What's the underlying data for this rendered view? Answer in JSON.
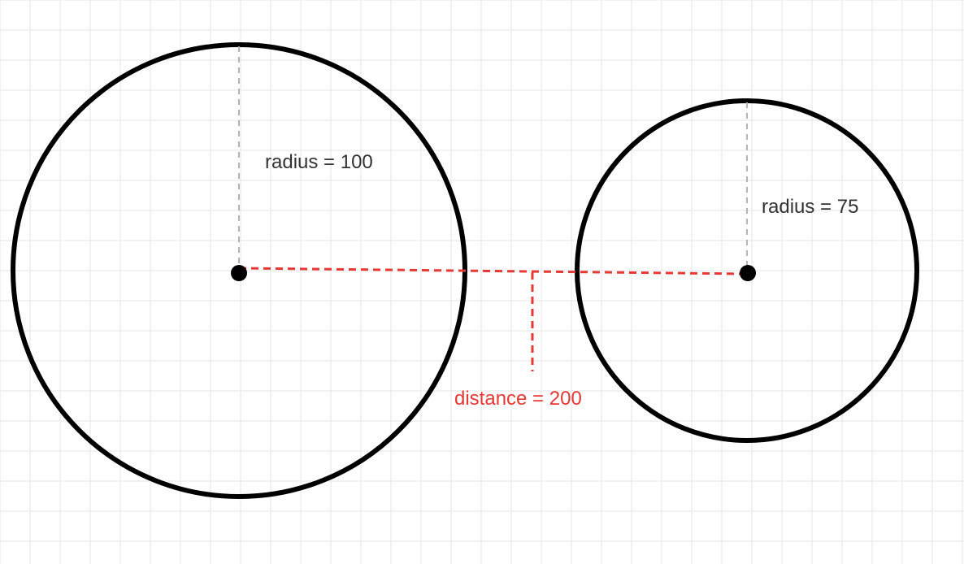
{
  "diagram": {
    "left_circle": {
      "radius_label": "radius = 100"
    },
    "right_circle": {
      "radius_label": "radius = 75"
    },
    "distance_label": "distance = 200",
    "colors": {
      "background": "#ffffff",
      "grid": "#e6e6e6",
      "circle_stroke": "#000000",
      "radius_guide": "#b3b3b3",
      "distance": "#e53935",
      "radius_text": "#333333"
    }
  }
}
